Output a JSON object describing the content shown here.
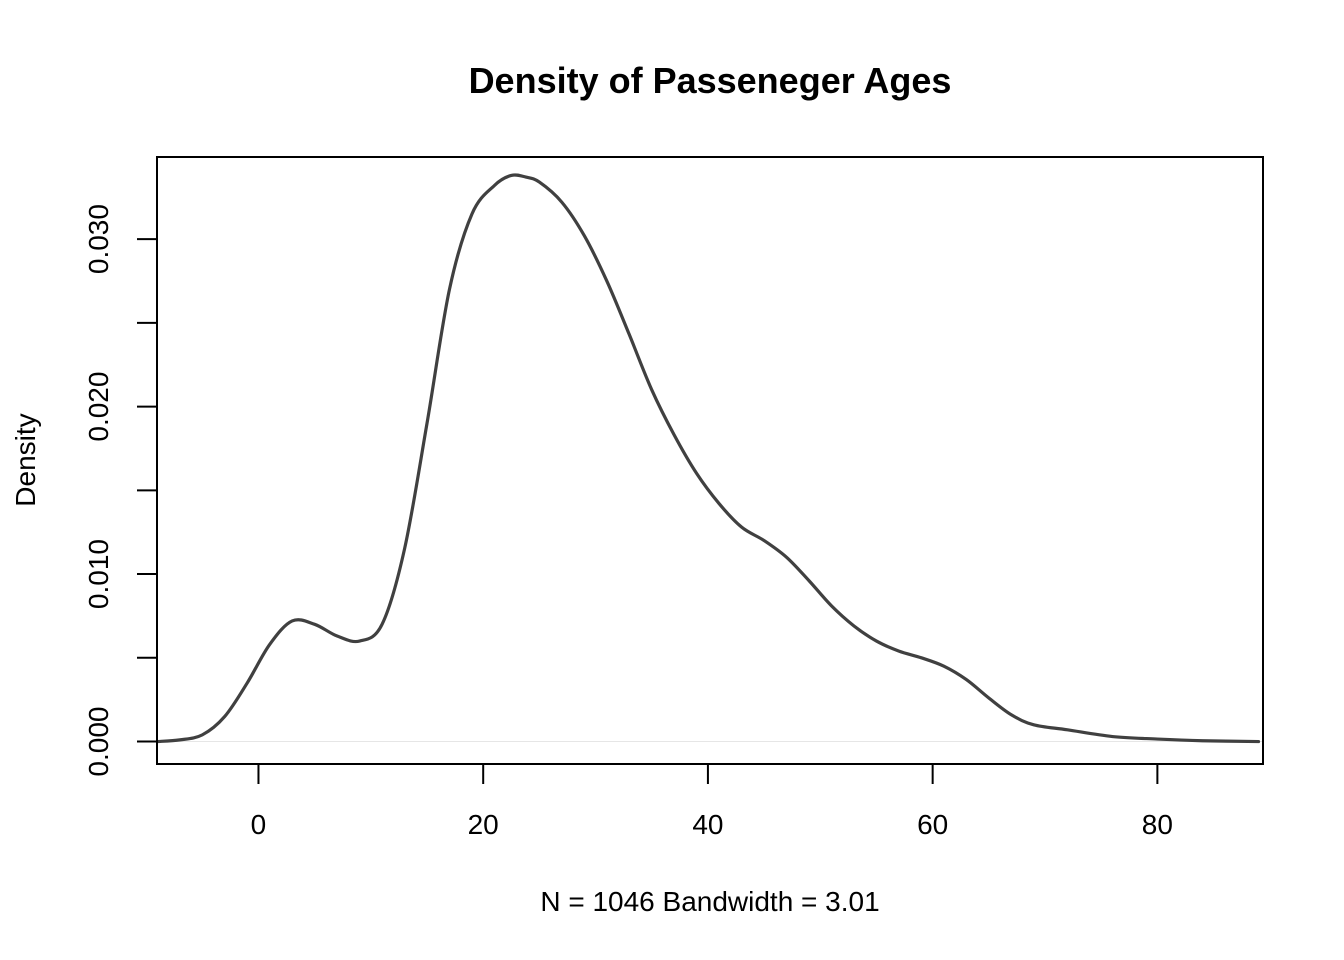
{
  "chart_data": {
    "type": "line",
    "title": "Density of Passeneger Ages",
    "xlabel": "N = 1046   Bandwidth = 3.01",
    "ylabel": "Density",
    "xlim": [
      -9.03,
      89.4
    ],
    "ylim": [
      -0.00134,
      0.0349
    ],
    "x_ticks": [
      0,
      20,
      40,
      60,
      80
    ],
    "x_tick_labels": [
      "0",
      "20",
      "40",
      "60",
      "80"
    ],
    "y_ticks": [
      0,
      0.005,
      0.01,
      0.015,
      0.02,
      0.025,
      0.03
    ],
    "y_tick_labels": [
      "0.000",
      "",
      "0.010",
      "",
      "0.020",
      "",
      "0.030"
    ],
    "zero_line": true,
    "series": [
      {
        "color": "#404040",
        "x": [
          -9,
          -7,
          -5,
          -3,
          -1,
          1,
          3,
          5,
          7,
          9,
          11,
          13,
          15,
          17,
          19,
          21,
          22.5,
          23.8,
          25,
          27,
          29,
          31,
          33,
          35,
          37,
          39,
          41,
          43,
          45,
          47,
          49,
          51,
          53,
          55,
          57,
          59,
          61,
          63,
          65,
          67,
          69,
          72,
          76,
          80,
          84,
          89
        ],
        "y": [
          0,
          0.0001,
          0.0004,
          0.0015,
          0.0035,
          0.0058,
          0.0072,
          0.007,
          0.0063,
          0.006,
          0.007,
          0.0115,
          0.019,
          0.027,
          0.0315,
          0.0332,
          0.0338,
          0.0337,
          0.0334,
          0.0322,
          0.0302,
          0.0275,
          0.0243,
          0.021,
          0.0183,
          0.016,
          0.0142,
          0.0128,
          0.012,
          0.011,
          0.0096,
          0.0081,
          0.0069,
          0.006,
          0.0054,
          0.005,
          0.0045,
          0.0037,
          0.0026,
          0.0016,
          0.001,
          0.0007,
          0.0003,
          0.00015,
          5e-05,
          0
        ]
      }
    ]
  }
}
